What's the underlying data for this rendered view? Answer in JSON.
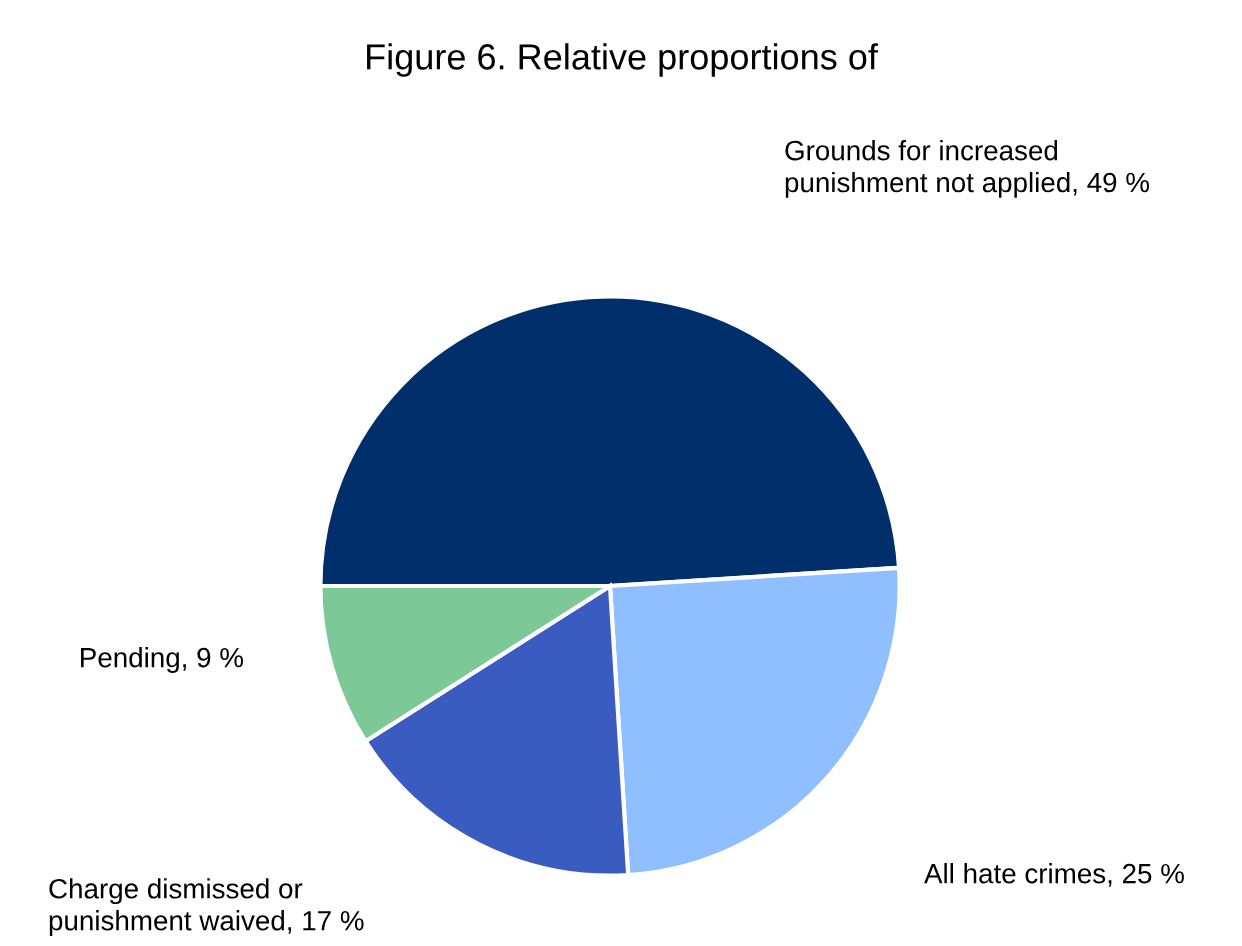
{
  "chart_data": {
    "type": "pie",
    "title": "Figure 6. Relative proportions of",
    "categories": [
      "Grounds for increased\npunishment not applied, 49 %",
      "All hate crimes, 25 %",
      "Charge dismissed or\npunishment waived, 17 %",
      "Pending, 9 %"
    ],
    "values": [
      49,
      25,
      17,
      9
    ],
    "colors": [
      "#002f6c",
      "#8fbfff",
      "#3a5bbf",
      "#7dc897"
    ]
  }
}
